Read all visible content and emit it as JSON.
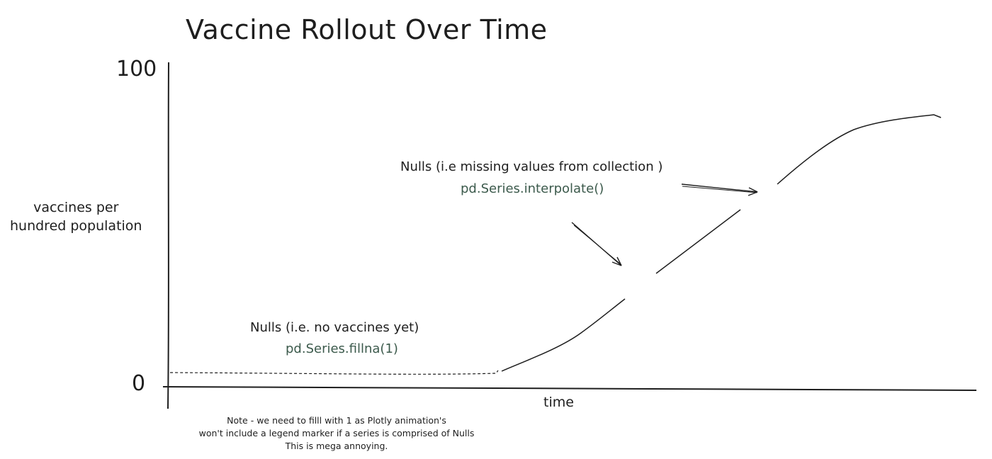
{
  "chart_data": {
    "type": "line",
    "title": "Vaccine Rollout Over Time",
    "xlabel": "time",
    "ylabel": [
      "vaccines per",
      "hundred population"
    ],
    "ylim": [
      0,
      100
    ],
    "y_ticks": [
      "0",
      "100"
    ],
    "series": [
      {
        "x": [
          0,
          10,
          20,
          30,
          40,
          42,
          50,
          60,
          70,
          80,
          90,
          100,
          110,
          120,
          130,
          140,
          150,
          155,
          160
        ],
        "y": [
          5,
          5,
          5,
          5,
          5,
          5,
          6,
          13,
          27,
          38,
          47,
          58,
          66,
          74,
          80,
          82,
          84,
          85,
          85
        ],
        "style": "line with gaps",
        "gaps": [
          {
            "x": [
              60,
              72
            ],
            "fill": "interpolate"
          },
          {
            "x": [
              90,
              97
            ],
            "fill": "interpolate"
          }
        ],
        "fill_segment": {
          "x": [
            0,
            43
          ],
          "y": 5,
          "style": "dashed",
          "fill": "fillna(1)"
        }
      }
    ],
    "annotations": [
      {
        "text": "Nulls (i.e missing values from collection )",
        "code": "pd.Series.interpolate()"
      },
      {
        "text": "Nulls (i.e. no vaccines yet)",
        "code": "pd.Series.fillna(1)"
      }
    ],
    "note": [
      "Note - we need to filll with 1 as Plotly animation's",
      "won't include a legend marker if a series is comprised of Nulls",
      "This is mega annoying."
    ]
  }
}
